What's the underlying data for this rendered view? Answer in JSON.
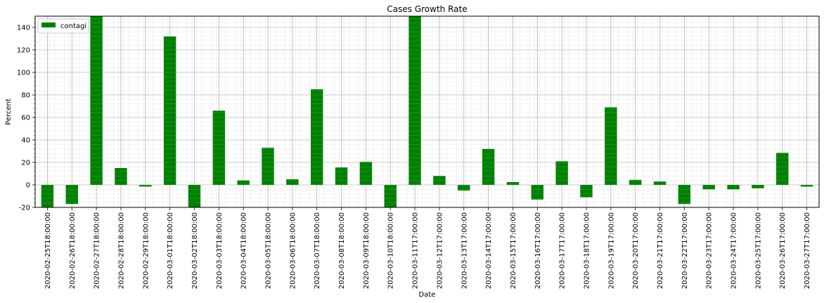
{
  "chart_data": {
    "type": "bar",
    "title": "Cases Growth Rate",
    "xlabel": "Date",
    "ylabel": "Percent",
    "ylim": [
      -20,
      150
    ],
    "yticks": [
      -20,
      0,
      20,
      40,
      60,
      80,
      100,
      120,
      140
    ],
    "grid": true,
    "legend_position": "top-left",
    "bar_color": "#008000",
    "series": [
      {
        "name": "contagi",
        "values": [
          -22,
          -17,
          153,
          15,
          -1.5,
          132,
          -22,
          66,
          4,
          33,
          5,
          85,
          15.5,
          20.5,
          -22,
          153,
          8,
          -5,
          32,
          2.5,
          -13,
          21,
          -11,
          69,
          4.5,
          3,
          -17,
          -4,
          -4,
          -3,
          28.5,
          -1.5
        ]
      }
    ],
    "categories": [
      "2020-02-25T18:00:00",
      "2020-02-26T18:00:00",
      "2020-02-27T18:00:00",
      "2020-02-28T18:00:00",
      "2020-02-29T18:00:00",
      "2020-03-01T18:00:00",
      "2020-03-02T18:00:00",
      "2020-03-03T18:00:00",
      "2020-03-04T18:00:00",
      "2020-03-05T18:00:00",
      "2020-03-06T18:00:00",
      "2020-03-07T18:00:00",
      "2020-03-08T18:00:00",
      "2020-03-09T18:00:00",
      "2020-03-10T18:00:00",
      "2020-03-11T17:00:00",
      "2020-03-12T17:00:00",
      "2020-03-13T17:00:00",
      "2020-03-14T17:00:00",
      "2020-03-15T17:00:00",
      "2020-03-16T17:00:00",
      "2020-03-17T17:00:00",
      "2020-03-18T17:00:00",
      "2020-03-19T17:00:00",
      "2020-03-20T17:00:00",
      "2020-03-21T17:00:00",
      "2020-03-22T17:00:00",
      "2020-03-23T17:00:00",
      "2020-03-24T17:00:00",
      "2020-03-25T17:00:00",
      "2020-03-26T17:00:00",
      "2020-03-27T17:00:00"
    ]
  }
}
